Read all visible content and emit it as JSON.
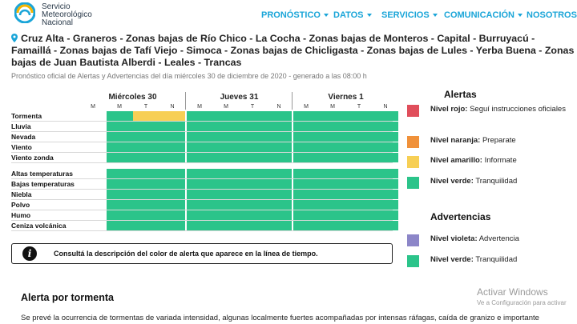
{
  "header": {
    "brand": [
      "Servicio",
      "Meteorológico",
      "Nacional"
    ],
    "nav": [
      {
        "label": "PRONÓSTICO",
        "name": "nav-pronostico"
      },
      {
        "label": "DATOS",
        "name": "nav-datos"
      },
      {
        "label": "SERVICIOS",
        "name": "nav-servicios"
      },
      {
        "label": "COMUNICACIÓN",
        "name": "nav-comunicacion"
      },
      {
        "label": "NOSOTROS",
        "name": "nav-nosotros"
      }
    ]
  },
  "zones": "Cruz Alta - Graneros - Zonas bajas de Río Chico - La Cocha - Zonas bajas de Monteros - Capital - Burruyacú - Famaillá - Zonas bajas de Tafí Viejo - Simoca - Zonas bajas de Chicligasta - Zonas bajas de Lules - Yerba Buena - Zonas bajas de Juan Bautista Alberdi - Leales - Trancas",
  "subtitle": "Pronóstico oficial de Alertas y Advertencias del día miércoles 30 de diciembre de 2020 - generado a las 08:00 h",
  "timeline": {
    "days": [
      "Miércoles 30",
      "Jueves 31",
      "Viernes 1"
    ],
    "slots": [
      "M",
      "M",
      "T",
      "N"
    ],
    "rows": [
      {
        "label": "Tormenta",
        "levels": [
          "none",
          "green",
          "yellow",
          "yellow",
          "green",
          "green",
          "green",
          "green",
          "green",
          "green",
          "green",
          "green"
        ]
      },
      {
        "label": "Lluvia",
        "levels": [
          "none",
          "green",
          "green",
          "green",
          "green",
          "green",
          "green",
          "green",
          "green",
          "green",
          "green",
          "green"
        ]
      },
      {
        "label": "Nevada",
        "levels": [
          "none",
          "green",
          "green",
          "green",
          "green",
          "green",
          "green",
          "green",
          "green",
          "green",
          "green",
          "green"
        ]
      },
      {
        "label": "Viento",
        "levels": [
          "none",
          "green",
          "green",
          "green",
          "green",
          "green",
          "green",
          "green",
          "green",
          "green",
          "green",
          "green"
        ]
      },
      {
        "label": "Viento zonda",
        "levels": [
          "none",
          "green",
          "green",
          "green",
          "green",
          "green",
          "green",
          "green",
          "green",
          "green",
          "green",
          "green"
        ]
      },
      {
        "label": "Altas temperaturas",
        "levels": [
          "none",
          "green",
          "green",
          "green",
          "green",
          "green",
          "green",
          "green",
          "green",
          "green",
          "green",
          "green"
        ]
      },
      {
        "label": "Bajas temperaturas",
        "levels": [
          "none",
          "green",
          "green",
          "green",
          "green",
          "green",
          "green",
          "green",
          "green",
          "green",
          "green",
          "green"
        ]
      },
      {
        "label": "Niebla",
        "levels": [
          "none",
          "green",
          "green",
          "green",
          "green",
          "green",
          "green",
          "green",
          "green",
          "green",
          "green",
          "green"
        ]
      },
      {
        "label": "Polvo",
        "levels": [
          "none",
          "green",
          "green",
          "green",
          "green",
          "green",
          "green",
          "green",
          "green",
          "green",
          "green",
          "green"
        ]
      },
      {
        "label": "Humo",
        "levels": [
          "none",
          "green",
          "green",
          "green",
          "green",
          "green",
          "green",
          "green",
          "green",
          "green",
          "green",
          "green"
        ]
      },
      {
        "label": "Ceniza volcánica",
        "levels": [
          "none",
          "green",
          "green",
          "green",
          "green",
          "green",
          "green",
          "green",
          "green",
          "green",
          "green",
          "green"
        ]
      }
    ]
  },
  "colors": {
    "green": "#2bc48a",
    "yellow": "#f7cf55",
    "orange": "#f0913a",
    "red": "#e04e5b",
    "violet": "#8c86c8"
  },
  "info": {
    "icon": "info-icon",
    "text": "Consultá la descripción del color de alerta que aparece en la línea de tiempo."
  },
  "legend": {
    "alertas_title": "Alertas",
    "alertas": [
      {
        "level": "Nivel rojo:",
        "desc": "Seguí instrucciones oficiales",
        "color": "red"
      },
      {
        "level": "Nivel naranja:",
        "desc": "Preparate",
        "color": "orange"
      },
      {
        "level": "Nivel amarillo:",
        "desc": "Informate",
        "color": "yellow"
      },
      {
        "level": "Nivel verde:",
        "desc": "Tranquilidad",
        "color": "green"
      }
    ],
    "advertencias_title": "Advertencias",
    "advertencias": [
      {
        "level": "Nivel violeta:",
        "desc": "Advertencia",
        "color": "violet"
      },
      {
        "level": "Nivel verde:",
        "desc": "Tranquilidad",
        "color": "green"
      }
    ]
  },
  "section": {
    "title": "Alerta por tormenta",
    "text": "Se prevé la ocurrencia de tormentas de variada intensidad, algunas localmente fuertes acompañadas por intensas ráfagas, caída de granizo e importante"
  },
  "watermark": {
    "title": "Activar Windows",
    "subtitle": "Ve a Configuración para activar"
  }
}
